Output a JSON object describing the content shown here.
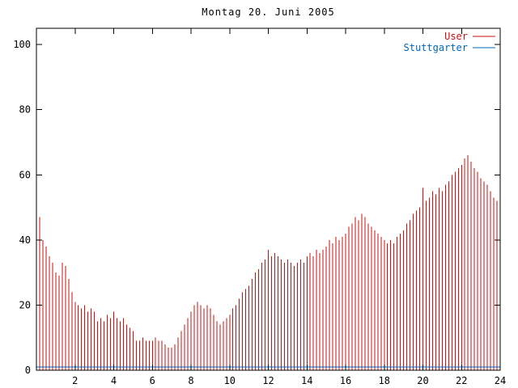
{
  "chart_data": {
    "type": "bar",
    "style": "impulses",
    "title": "Montag 20. Juni 2005",
    "sampling": "10-minute intervals over 24 hours",
    "x_axis": {
      "min": 0,
      "max": 24,
      "tick_step": 2,
      "tick_labels": [
        "2",
        "4",
        "6",
        "8",
        "10",
        "12",
        "14",
        "16",
        "18",
        "20",
        "22",
        "24"
      ]
    },
    "y_axis": {
      "min": 0,
      "max": 100,
      "display_max": 105,
      "ticks": [
        0,
        20,
        40,
        60,
        80,
        100
      ]
    },
    "grid": "off",
    "legend": {
      "position": "top-right-inside"
    },
    "colors": {
      "user": "#cc1111",
      "stuttgarter": "#0066bb",
      "axis": "#000000"
    },
    "series": [
      {
        "name": "User",
        "type": "impulses",
        "color": "#cc1111",
        "x_start": 0,
        "x_step_hours": 0.1666667,
        "values": [
          44,
          47,
          40,
          38,
          35,
          33,
          30,
          29,
          33,
          32,
          28,
          24,
          21,
          20,
          19,
          20,
          18,
          19,
          18,
          15,
          16,
          15,
          17,
          16,
          18,
          16,
          15,
          16,
          14,
          13,
          12,
          9,
          9,
          10,
          9,
          9,
          9,
          10,
          9,
          9,
          8,
          7,
          7,
          8,
          10,
          12,
          14,
          16,
          18,
          20,
          21,
          20,
          19,
          20,
          19,
          17,
          15,
          14,
          15,
          16,
          17,
          19,
          20,
          22,
          24,
          25,
          26,
          28,
          30,
          31,
          33,
          34,
          37,
          35,
          36,
          35,
          34,
          33,
          34,
          33,
          32,
          33,
          34,
          33,
          35,
          36,
          35,
          37,
          36,
          37,
          38,
          40,
          39,
          41,
          40,
          41,
          42,
          44,
          45,
          47,
          46,
          48,
          47,
          45,
          44,
          43,
          42,
          41,
          40,
          39,
          40,
          39,
          41,
          42,
          43,
          45,
          46,
          48,
          49,
          50,
          56,
          52,
          53,
          55,
          54,
          56,
          55,
          57,
          58,
          60,
          61,
          62,
          63,
          65,
          66,
          64,
          62,
          61,
          59,
          58,
          57,
          55,
          53,
          52,
          50
        ]
      },
      {
        "name": "Stuttgarter",
        "type": "line",
        "color": "#0066bb",
        "approx_constant_value": 1
      }
    ]
  }
}
